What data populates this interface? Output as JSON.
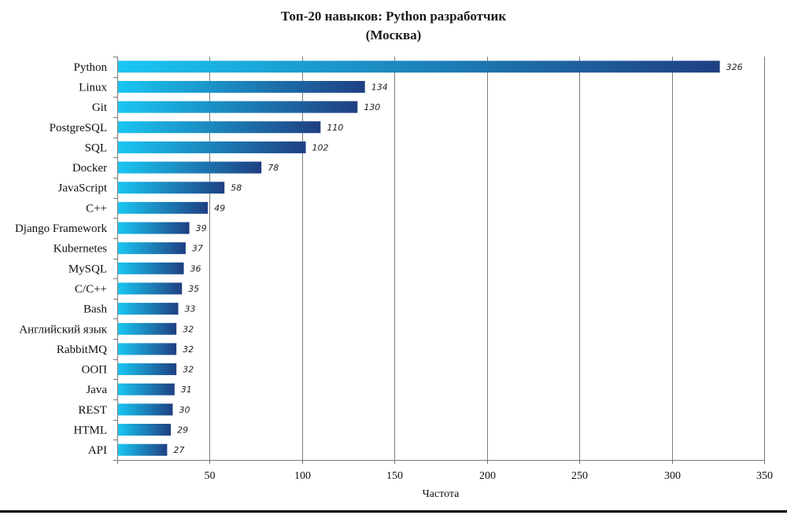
{
  "chart_data": {
    "type": "bar",
    "orientation": "horizontal",
    "title": [
      "Топ-20 навыков: Python разработчик",
      "(Москва)"
    ],
    "xlabel": "Частота",
    "ylabel": "",
    "xlim": [
      0,
      350
    ],
    "xticks": [
      50,
      100,
      150,
      200,
      250,
      300,
      350
    ],
    "grid": "vertical",
    "legend": "none",
    "categories": [
      "Python",
      "Linux",
      "Git",
      "PostgreSQL",
      "SQL",
      "Docker",
      "JavaScript",
      "C++",
      "Django Framework",
      "Kubernetes",
      "MySQL",
      "C/C++",
      "Bash",
      "Английский язык",
      "RabbitMQ",
      "ООП",
      "Java",
      "REST",
      "HTML",
      "API"
    ],
    "values": [
      326,
      134,
      130,
      110,
      102,
      78,
      58,
      49,
      39,
      37,
      36,
      35,
      33,
      32,
      32,
      32,
      31,
      30,
      29,
      27
    ],
    "data_labels": true,
    "colors": {
      "bar_start": "#19c6f2",
      "bar_end": "#1f3f82",
      "grid": "#7a7a7a",
      "axis": "#7a7a7a"
    }
  }
}
